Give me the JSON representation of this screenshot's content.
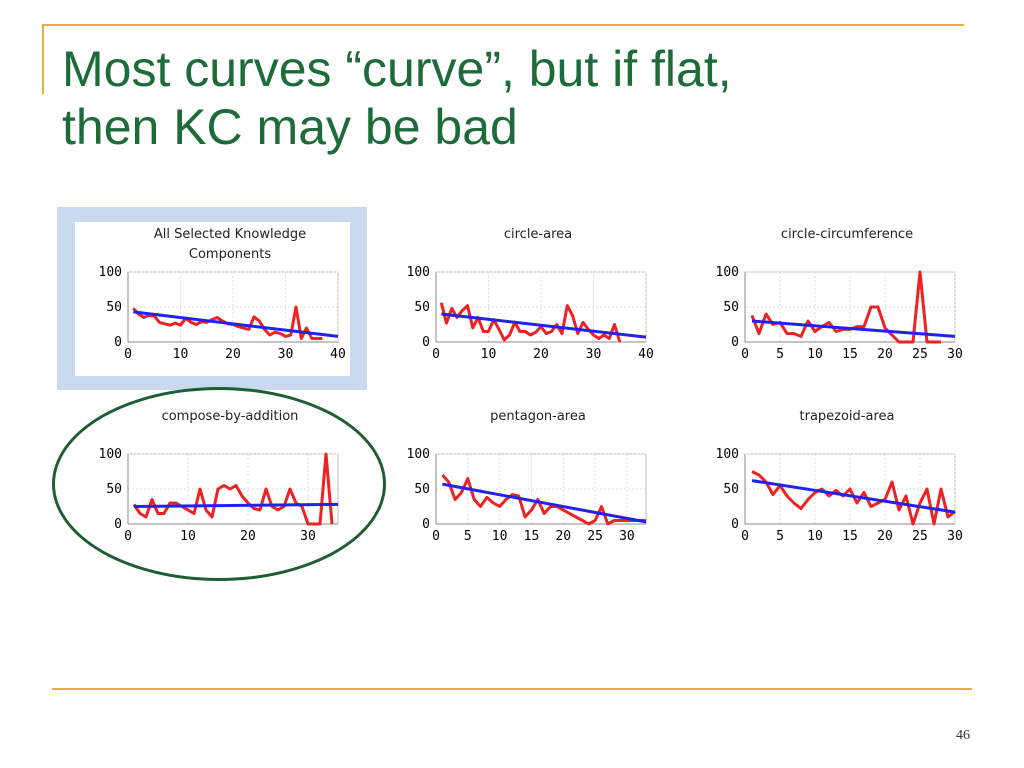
{
  "slide": {
    "title_line1": "Most curves “curve”, but if flat,",
    "title_line2": "then KC may be bad",
    "page_number": "46"
  },
  "colors": {
    "accent": "#e0b040",
    "title": "#1e6b3a",
    "predicted": "#2222ee",
    "actual": "#ee2222",
    "highlight": "#c9d9ef",
    "circle": "#1e5e30"
  },
  "chart_data": [
    {
      "type": "line",
      "title": [
        "All Selected Knowledge",
        "Components"
      ],
      "xlim": [
        0,
        40
      ],
      "ylim": [
        0,
        100
      ],
      "xticks": [
        "0",
        "10",
        "20",
        "30",
        "40"
      ],
      "yticks": [
        "0",
        "50",
        "100"
      ],
      "grid": true,
      "series": [
        {
          "role": "actual",
          "x": [
            1,
            2,
            3,
            4,
            5,
            6,
            7,
            8,
            9,
            10,
            11,
            12,
            13,
            14,
            15,
            16,
            17,
            18,
            19,
            20,
            21,
            22,
            23,
            24,
            25,
            26,
            27,
            28,
            29,
            30,
            31,
            32,
            33,
            34,
            35,
            36,
            37
          ],
          "y": [
            48,
            40,
            35,
            38,
            37,
            28,
            26,
            24,
            27,
            24,
            34,
            28,
            25,
            29,
            28,
            32,
            35,
            30,
            26,
            25,
            22,
            20,
            18,
            36,
            30,
            18,
            10,
            14,
            12,
            8,
            10,
            50,
            5,
            20,
            5,
            5,
            5
          ]
        },
        {
          "role": "predicted",
          "x": [
            1,
            40
          ],
          "y": [
            43,
            8
          ]
        }
      ]
    },
    {
      "type": "line",
      "title": [
        "circle-area"
      ],
      "xlim": [
        0,
        40
      ],
      "ylim": [
        0,
        100
      ],
      "xticks": [
        "0",
        "10",
        "20",
        "30",
        "40"
      ],
      "yticks": [
        "0",
        "50",
        "100"
      ],
      "grid": true,
      "series": [
        {
          "role": "actual",
          "x": [
            1,
            2,
            3,
            4,
            5,
            6,
            7,
            8,
            9,
            10,
            11,
            12,
            13,
            14,
            15,
            16,
            17,
            18,
            19,
            20,
            21,
            22,
            23,
            24,
            25,
            26,
            27,
            28,
            29,
            30,
            31,
            32,
            33,
            34,
            35
          ],
          "y": [
            56,
            27,
            48,
            35,
            45,
            52,
            20,
            35,
            15,
            15,
            32,
            18,
            3,
            10,
            28,
            15,
            15,
            10,
            14,
            22,
            12,
            15,
            25,
            12,
            52,
            38,
            12,
            28,
            18,
            10,
            5,
            10,
            5,
            25,
            0
          ]
        },
        {
          "role": "predicted",
          "x": [
            1,
            40
          ],
          "y": [
            40,
            7
          ]
        }
      ]
    },
    {
      "type": "line",
      "title": [
        "circle-circumference"
      ],
      "xlim": [
        0,
        30
      ],
      "ylim": [
        0,
        100
      ],
      "xticks": [
        "0",
        "5",
        "10",
        "15",
        "20",
        "25",
        "30"
      ],
      "yticks": [
        "0",
        "50",
        "100"
      ],
      "grid": true,
      "series": [
        {
          "role": "actual",
          "x": [
            1,
            2,
            3,
            4,
            5,
            6,
            7,
            8,
            9,
            10,
            11,
            12,
            13,
            14,
            15,
            16,
            17,
            18,
            19,
            20,
            21,
            22,
            23,
            24,
            25,
            26,
            27,
            28
          ],
          "y": [
            38,
            12,
            40,
            25,
            28,
            12,
            12,
            8,
            30,
            15,
            22,
            28,
            15,
            18,
            18,
            22,
            22,
            50,
            50,
            20,
            10,
            0,
            0,
            0,
            100,
            0,
            0,
            0
          ]
        },
        {
          "role": "predicted",
          "x": [
            1,
            30
          ],
          "y": [
            30,
            8
          ]
        }
      ]
    },
    {
      "type": "line",
      "title": [
        "compose-by-addition"
      ],
      "xlim": [
        0,
        35
      ],
      "ylim": [
        0,
        100
      ],
      "xticks": [
        "0",
        "10",
        "20",
        "30"
      ],
      "yticks": [
        "0",
        "50",
        "100"
      ],
      "grid": true,
      "series": [
        {
          "role": "actual",
          "x": [
            1,
            2,
            3,
            4,
            5,
            6,
            7,
            8,
            9,
            10,
            11,
            12,
            13,
            14,
            15,
            16,
            17,
            18,
            19,
            20,
            21,
            22,
            23,
            24,
            25,
            26,
            27,
            28,
            29,
            30,
            31,
            32,
            33,
            34
          ],
          "y": [
            28,
            15,
            10,
            35,
            15,
            15,
            30,
            30,
            25,
            20,
            15,
            50,
            20,
            10,
            50,
            55,
            50,
            55,
            40,
            30,
            22,
            20,
            50,
            25,
            20,
            25,
            50,
            30,
            25,
            0,
            0,
            0,
            100,
            0
          ]
        },
        {
          "role": "predicted",
          "x": [
            1,
            35
          ],
          "y": [
            25,
            28
          ]
        }
      ]
    },
    {
      "type": "line",
      "title": [
        "pentagon-area"
      ],
      "xlim": [
        0,
        33
      ],
      "ylim": [
        0,
        100
      ],
      "xticks": [
        "0",
        "5",
        "10",
        "15",
        "20",
        "25",
        "30"
      ],
      "yticks": [
        "0",
        "50",
        "100"
      ],
      "grid": true,
      "series": [
        {
          "role": "actual",
          "x": [
            1,
            2,
            3,
            4,
            5,
            6,
            7,
            8,
            9,
            10,
            11,
            12,
            13,
            14,
            15,
            16,
            17,
            18,
            19,
            20,
            21,
            22,
            23,
            24,
            25,
            26,
            27,
            28,
            29,
            30,
            31,
            32,
            33
          ],
          "y": [
            70,
            60,
            35,
            45,
            65,
            35,
            25,
            38,
            30,
            25,
            35,
            42,
            40,
            10,
            20,
            35,
            15,
            25,
            25,
            20,
            15,
            10,
            5,
            0,
            5,
            25,
            0,
            5,
            5,
            5,
            5,
            5,
            5
          ]
        },
        {
          "role": "predicted",
          "x": [
            1,
            33
          ],
          "y": [
            57,
            3
          ]
        }
      ]
    },
    {
      "type": "line",
      "title": [
        "trapezoid-area"
      ],
      "xlim": [
        0,
        30
      ],
      "ylim": [
        0,
        100
      ],
      "xticks": [
        "0",
        "5",
        "10",
        "15",
        "20",
        "25",
        "30"
      ],
      "yticks": [
        "0",
        "50",
        "100"
      ],
      "grid": true,
      "series": [
        {
          "role": "actual",
          "x": [
            1,
            2,
            3,
            4,
            5,
            6,
            7,
            8,
            9,
            10,
            11,
            12,
            13,
            14,
            15,
            16,
            17,
            18,
            19,
            20,
            21,
            22,
            23,
            24,
            25,
            26,
            27,
            28,
            29,
            30
          ],
          "y": [
            75,
            70,
            60,
            42,
            55,
            40,
            30,
            22,
            35,
            45,
            50,
            40,
            48,
            40,
            50,
            30,
            45,
            25,
            30,
            35,
            60,
            20,
            40,
            0,
            30,
            50,
            0,
            50,
            10,
            18
          ]
        },
        {
          "role": "predicted",
          "x": [
            1,
            30
          ],
          "y": [
            62,
            17
          ]
        }
      ]
    }
  ]
}
